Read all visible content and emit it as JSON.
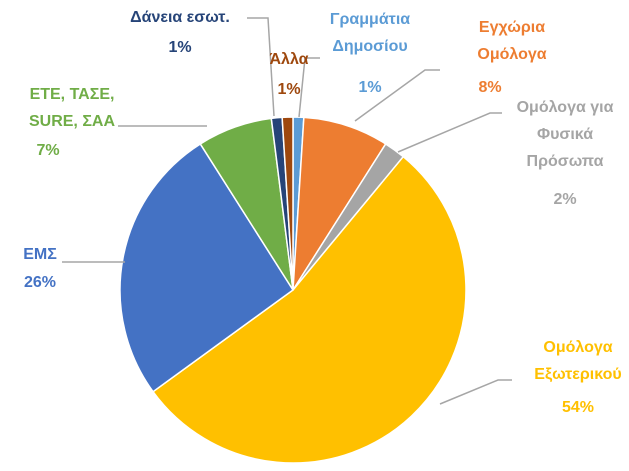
{
  "chart_data": {
    "type": "pie",
    "categories": [
      "Γραμμάτια Δημοσίου",
      "Εγχώρια Ομόλογα",
      "Ομόλογα για Φυσικά Πρόσωπα",
      "Ομόλογα Εξωτερικού",
      "ΕΜΣ",
      "ΕΤΕ, ΤΑΣΕ, SURE, ΣΑΑ",
      "Δάνεια εσωτ.",
      "Άλλα"
    ],
    "values": [
      1,
      8,
      2,
      54,
      26,
      7,
      1,
      1
    ],
    "value_labels": [
      "1%",
      "8%",
      "2%",
      "54%",
      "26%",
      "7%",
      "1%",
      "1%"
    ],
    "colors": [
      "#5b9bd5",
      "#ed7d31",
      "#a5a5a5",
      "#ffc000",
      "#4472c4",
      "#70ad47",
      "#264478",
      "#9e480e"
    ]
  }
}
